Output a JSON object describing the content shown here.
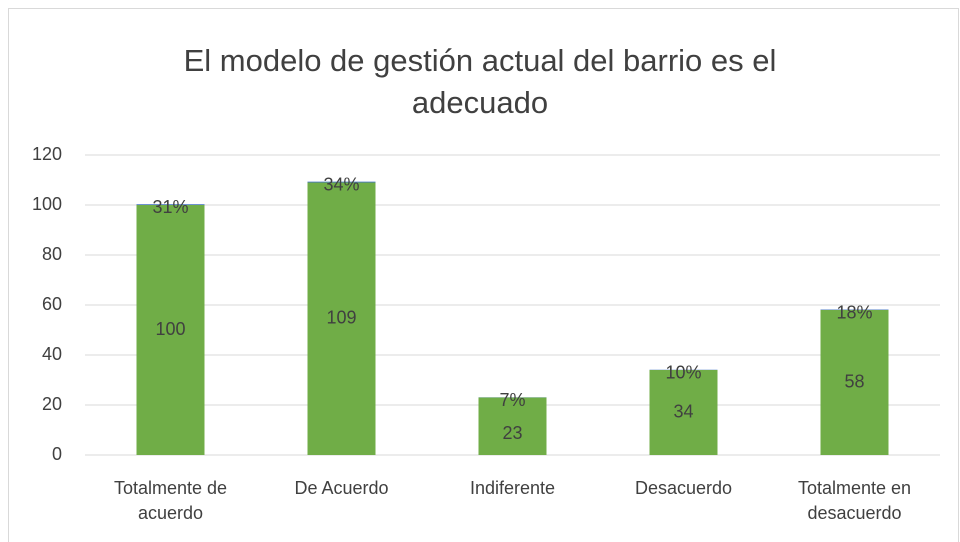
{
  "chart_data": {
    "type": "stacked_bar",
    "title": "El modelo de gestión actual del barrio es el adecuado",
    "categories": [
      "Totalmente de acuerdo",
      "De Acuerdo",
      "Indiferente",
      "Desacuerdo",
      "Totalmente en desacuerdo"
    ],
    "series": [
      {
        "color": "#70ad47",
        "values": [
          100,
          109,
          23,
          34,
          58
        ]
      },
      {
        "color": "#4472c4",
        "values": [
          0.31,
          0.34,
          0.07,
          0.1,
          0.18
        ],
        "value_labels": [
          "31%",
          "34%",
          "7%",
          "10%",
          "18%"
        ]
      }
    ],
    "ylim": [
      0,
      120
    ],
    "yticks": [
      0,
      20,
      40,
      60,
      80,
      100,
      120
    ],
    "grid": true
  }
}
